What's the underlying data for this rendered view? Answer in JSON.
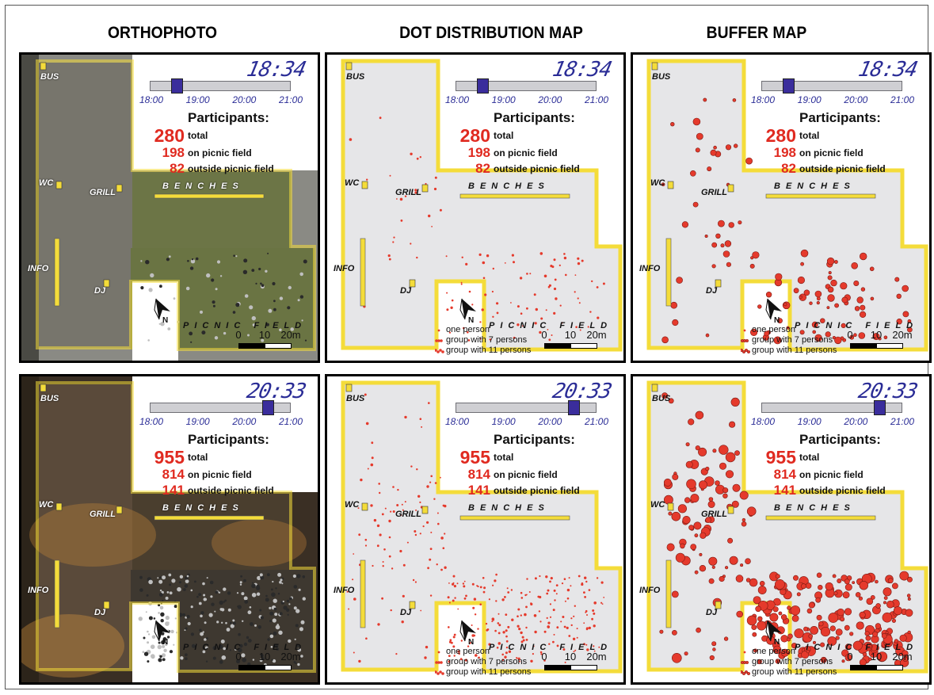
{
  "columns": [
    "ORTHOPHOTO",
    "DOT DISTRIBUTION MAP",
    "BUFFER MAP"
  ],
  "timeline": {
    "ticks": [
      "18:00",
      "19:00",
      "20:00",
      "21:00"
    ],
    "start_hour": 18,
    "end_hour": 21
  },
  "snapshots": [
    {
      "time": "18:34",
      "slider_fraction": 0.19,
      "participants_label": "Participants:",
      "total": "280",
      "total_label": "total",
      "on_field": "198",
      "on_field_label": "on picnic field",
      "outside": "82",
      "outside_label": "outside picnic field"
    },
    {
      "time": "20:33",
      "slider_fraction": 0.84,
      "participants_label": "Participants:",
      "total": "955",
      "total_label": "total",
      "on_field": "814",
      "on_field_label": "on picnic field",
      "outside": "141",
      "outside_label": "outside picnic field"
    }
  ],
  "sites": {
    "bus": "BUS",
    "wc": "WC",
    "grill": "GRILL",
    "info": "INFO",
    "dj": "DJ",
    "benches": "BENCHES",
    "picnic_field": "PICNIC FIELD"
  },
  "north_label": "N",
  "scale": {
    "labels": [
      "0",
      "10",
      "20m"
    ]
  },
  "legend": {
    "one": "one person",
    "seven": "group with 7 persons",
    "eleven": "group with 11 persons"
  },
  "colors": {
    "boundary": "#f4dc3a",
    "point": "#e53a2c",
    "area_fill": "#e6e6e8",
    "grass": "#6f7a45",
    "time": "#2a2c96",
    "knob": "#3a2d9c"
  }
}
